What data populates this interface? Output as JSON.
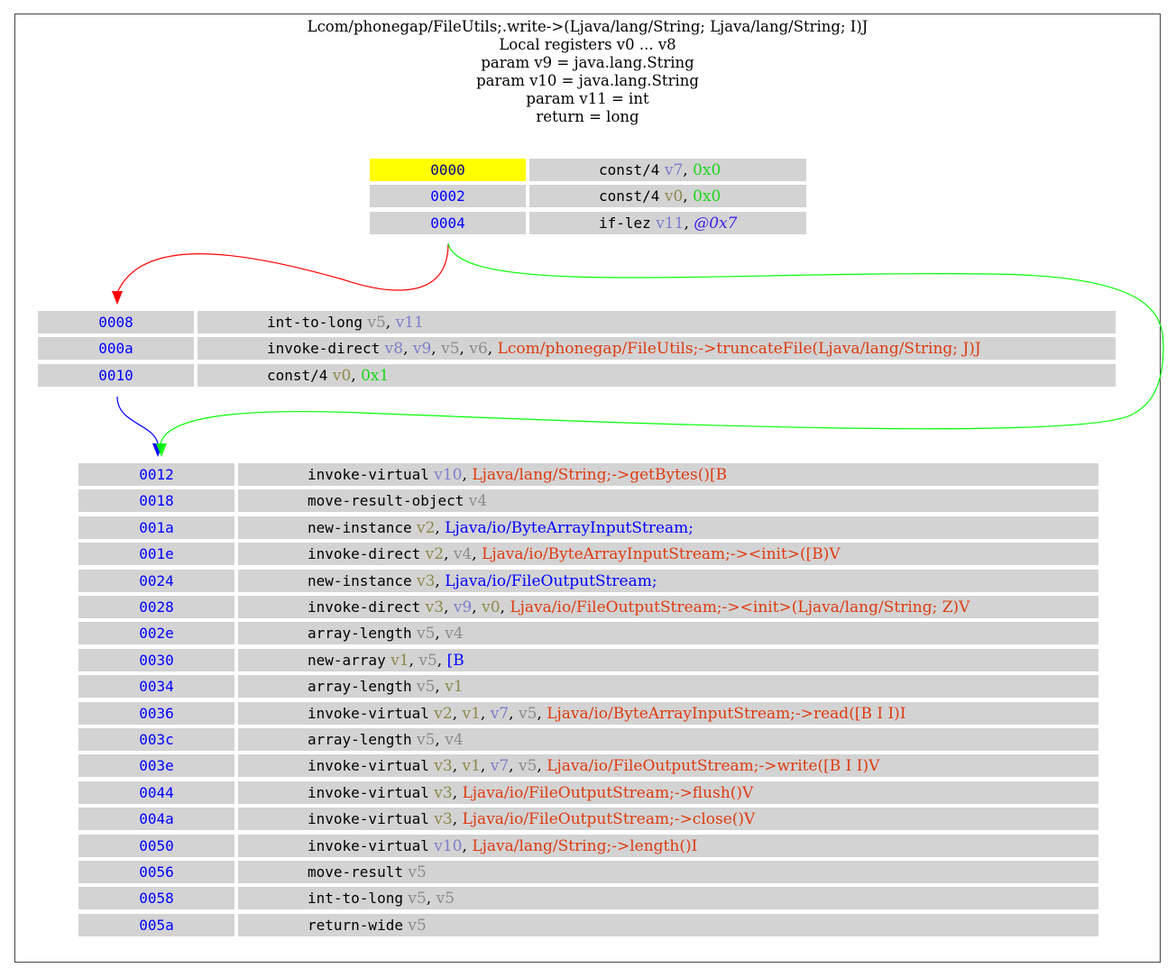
{
  "header": {
    "lines": [
      "Lcom/phonegap/FileUtils;.write->(Ljava/lang/String; Ljava/lang/String; I)J",
      "Local registers v0 ... v8",
      "param v9 = java.lang.String",
      "param v10 = java.lang.String",
      "param v11 = int",
      "return = long"
    ]
  },
  "colors": {
    "edge_false": "#ff0000",
    "edge_true": "#00ff00",
    "edge_fallthrough": "#0000ff",
    "highlight": "#ffff00",
    "cell": "#d3d3d3"
  },
  "blocks": [
    {
      "id": "block-0000",
      "rows": [
        {
          "addr": "0000",
          "op": "const/4",
          "args": [
            [
              "v7",
              "reg"
            ],
            [
              "0x0",
              "lit"
            ]
          ],
          "highlight": true
        },
        {
          "addr": "0002",
          "op": "const/4",
          "args": [
            [
              "v0",
              "reg0"
            ],
            [
              "0x0",
              "lit"
            ]
          ]
        },
        {
          "addr": "0004",
          "op": "if-lez",
          "args": [
            [
              "v11",
              "reg"
            ],
            [
              "@0x7",
              "off"
            ]
          ]
        }
      ]
    },
    {
      "id": "block-0008",
      "rows": [
        {
          "addr": "0008",
          "op": "int-to-long",
          "args": [
            [
              "v5",
              "reg4"
            ],
            [
              "v11",
              "reg"
            ]
          ]
        },
        {
          "addr": "000a",
          "op": "invoke-direct",
          "args": [
            [
              "v8",
              "reg"
            ],
            [
              "v9",
              "reg"
            ],
            [
              "v5",
              "reg4"
            ],
            [
              "v6",
              "reg4"
            ],
            [
              "Lcom/phonegap/FileUtils;->truncateFile(Ljava/lang/String; J)J",
              "ref"
            ]
          ]
        },
        {
          "addr": "0010",
          "op": "const/4",
          "args": [
            [
              "v0",
              "reg0"
            ],
            [
              "0x1",
              "lit"
            ]
          ]
        }
      ]
    },
    {
      "id": "block-0012",
      "rows": [
        {
          "addr": "0012",
          "op": "invoke-virtual",
          "args": [
            [
              "v10",
              "reg"
            ],
            [
              "Ljava/lang/String;->getBytes()[B",
              "ref"
            ]
          ]
        },
        {
          "addr": "0018",
          "op": "move-result-object",
          "args": [
            [
              "v4",
              "reg4"
            ]
          ]
        },
        {
          "addr": "001a",
          "op": "new-instance",
          "args": [
            [
              "v2",
              "reg0"
            ],
            [
              "Ljava/io/ByteArrayInputStream;",
              "cls"
            ]
          ]
        },
        {
          "addr": "001e",
          "op": "invoke-direct",
          "args": [
            [
              "v2",
              "reg0"
            ],
            [
              "v4",
              "reg4"
            ],
            [
              "Ljava/io/ByteArrayInputStream;-><init>([B)V",
              "ref"
            ]
          ]
        },
        {
          "addr": "0024",
          "op": "new-instance",
          "args": [
            [
              "v3",
              "reg0"
            ],
            [
              "Ljava/io/FileOutputStream;",
              "cls"
            ]
          ]
        },
        {
          "addr": "0028",
          "op": "invoke-direct",
          "args": [
            [
              "v3",
              "reg0"
            ],
            [
              "v9",
              "reg"
            ],
            [
              "v0",
              "reg0"
            ],
            [
              "Ljava/io/FileOutputStream;-><init>(Ljava/lang/String; Z)V",
              "ref"
            ]
          ]
        },
        {
          "addr": "002e",
          "op": "array-length",
          "args": [
            [
              "v5",
              "reg4"
            ],
            [
              "v4",
              "reg4"
            ]
          ]
        },
        {
          "addr": "0030",
          "op": "new-array",
          "args": [
            [
              "v1",
              "reg0"
            ],
            [
              "v5",
              "reg4"
            ],
            [
              "[B",
              "cls"
            ]
          ]
        },
        {
          "addr": "0034",
          "op": "array-length",
          "args": [
            [
              "v5",
              "reg4"
            ],
            [
              "v1",
              "reg0"
            ]
          ]
        },
        {
          "addr": "0036",
          "op": "invoke-virtual",
          "args": [
            [
              "v2",
              "reg0"
            ],
            [
              "v1",
              "reg0"
            ],
            [
              "v7",
              "reg"
            ],
            [
              "v5",
              "reg4"
            ],
            [
              "Ljava/io/ByteArrayInputStream;->read([B I I)I",
              "ref"
            ]
          ]
        },
        {
          "addr": "003c",
          "op": "array-length",
          "args": [
            [
              "v5",
              "reg4"
            ],
            [
              "v4",
              "reg4"
            ]
          ]
        },
        {
          "addr": "003e",
          "op": "invoke-virtual",
          "args": [
            [
              "v3",
              "reg0"
            ],
            [
              "v1",
              "reg0"
            ],
            [
              "v7",
              "reg"
            ],
            [
              "v5",
              "reg4"
            ],
            [
              "Ljava/io/FileOutputStream;->write([B I I)V",
              "ref"
            ]
          ]
        },
        {
          "addr": "0044",
          "op": "invoke-virtual",
          "args": [
            [
              "v3",
              "reg0"
            ],
            [
              "Ljava/io/FileOutputStream;->flush()V",
              "ref"
            ]
          ]
        },
        {
          "addr": "004a",
          "op": "invoke-virtual",
          "args": [
            [
              "v3",
              "reg0"
            ],
            [
              "Ljava/io/FileOutputStream;->close()V",
              "ref"
            ]
          ]
        },
        {
          "addr": "0050",
          "op": "invoke-virtual",
          "args": [
            [
              "v10",
              "reg"
            ],
            [
              "Ljava/lang/String;->length()I",
              "ref"
            ]
          ]
        },
        {
          "addr": "0056",
          "op": "move-result",
          "args": [
            [
              "v5",
              "reg4"
            ]
          ]
        },
        {
          "addr": "0058",
          "op": "int-to-long",
          "args": [
            [
              "v5",
              "reg4"
            ],
            [
              "v5",
              "reg4"
            ]
          ]
        },
        {
          "addr": "005a",
          "op": "return-wide",
          "args": [
            [
              "v5",
              "reg4"
            ]
          ]
        }
      ]
    }
  ]
}
